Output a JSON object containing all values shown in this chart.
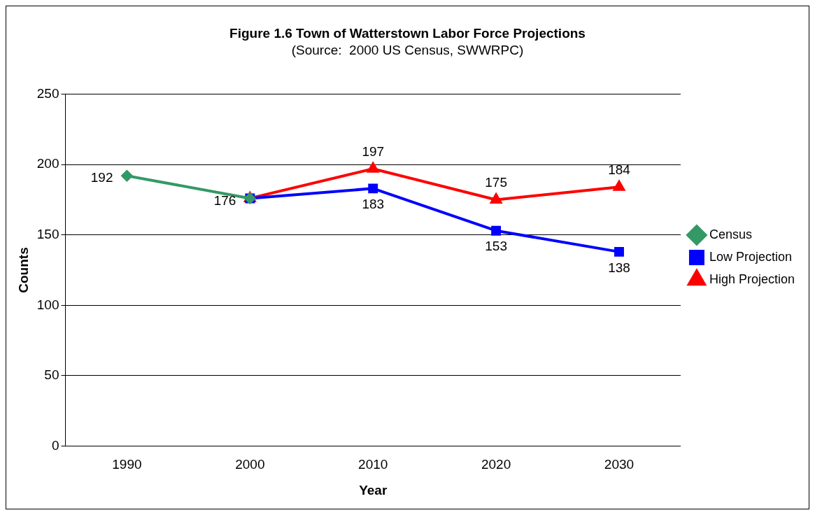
{
  "chart_data": {
    "type": "line",
    "title": "Figure 1.6 Town of Watterstown Labor Force Projections",
    "subtitle": "(Source:  2000 US Census, SWWRPC)",
    "xlabel": "Year",
    "ylabel": "Counts",
    "categories": [
      "1990",
      "2000",
      "2010",
      "2020",
      "2030"
    ],
    "series": [
      {
        "name": "Census",
        "color": "#339966",
        "marker": "diamond",
        "values": [
          192,
          176,
          null,
          null,
          null
        ],
        "value_labels": [
          "192",
          "176",
          null,
          null,
          null
        ]
      },
      {
        "name": "Low Projection",
        "color": "#0000ff",
        "marker": "square",
        "values": [
          null,
          176,
          183,
          153,
          138
        ],
        "value_labels": [
          null,
          null,
          "183",
          "153",
          "138"
        ]
      },
      {
        "name": "High Projection",
        "color": "#ff0000",
        "marker": "triangle",
        "values": [
          null,
          176,
          197,
          175,
          184
        ],
        "value_labels": [
          null,
          null,
          "197",
          "175",
          "184"
        ]
      }
    ],
    "ylim": [
      0,
      250
    ],
    "yticks": [
      0,
      50,
      100,
      150,
      200,
      250
    ],
    "grid": "y",
    "legend": "right"
  }
}
